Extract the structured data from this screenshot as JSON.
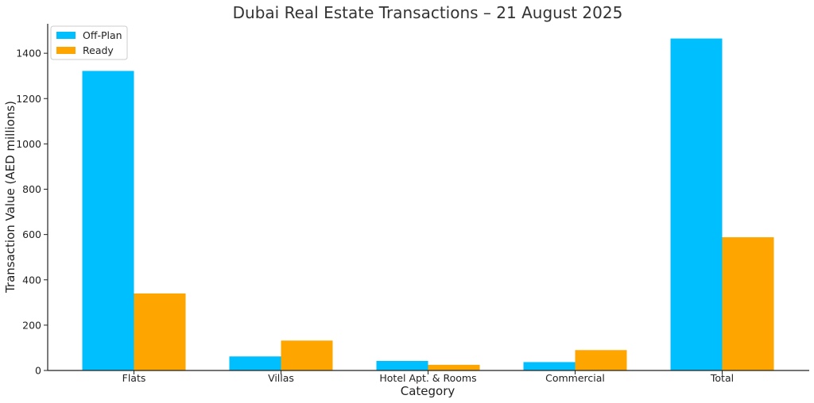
{
  "chart_data": {
    "type": "bar",
    "title": "Dubai Real Estate Transactions – 21 August 2025",
    "xlabel": "Category",
    "ylabel": "Transaction Value (AED millions)",
    "categories": [
      "Flats",
      "Villas",
      "Hotel Apt. & Rooms",
      "Commercial",
      "Total"
    ],
    "series": [
      {
        "name": "Off-Plan",
        "color": "#00bfff",
        "values": [
          1322,
          62,
          42,
          37,
          1465
        ]
      },
      {
        "name": "Ready",
        "color": "#ffa500",
        "values": [
          340,
          132,
          25,
          90,
          588
        ]
      }
    ],
    "ylim": [
      0,
      1530
    ],
    "yticks": [
      0,
      200,
      400,
      600,
      800,
      1000,
      1200,
      1400
    ],
    "grid": false,
    "legend_position": "top-left"
  }
}
